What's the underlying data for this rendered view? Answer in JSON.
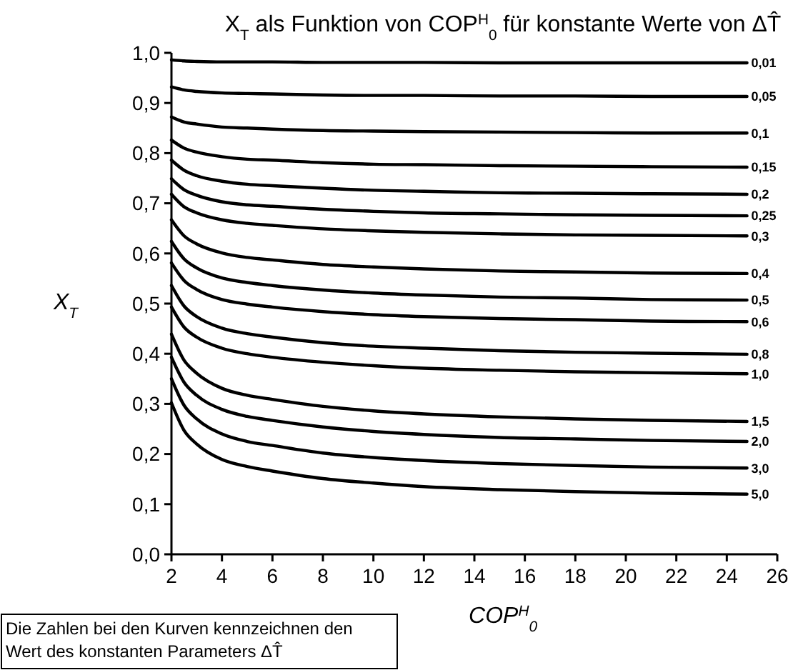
{
  "chart_data": {
    "type": "line",
    "title": "X$_{T}$ als Funktion von COP$^{H}$$_{0}$ für konstante Werte von ΔT̂",
    "xlabel": "COP$^{H}$$_{0}$",
    "ylabel": "X$_{T}$",
    "annotations": [
      "Die Zahlen bei den Kurven kennzeichnen den Wert des konstanten Parameters ΔT̂"
    ],
    "x": [
      2,
      2.5,
      3,
      4,
      5,
      6,
      8,
      10,
      12,
      15,
      18,
      21,
      24.8
    ],
    "xlim": [
      2,
      26
    ],
    "xticks": [
      2,
      4,
      6,
      8,
      10,
      12,
      14,
      16,
      18,
      20,
      22,
      24,
      26
    ],
    "ylim": [
      0,
      1
    ],
    "yticks": [
      {
        "value": 0,
        "label": "0,0"
      },
      {
        "value": 0.1,
        "label": "0,1"
      },
      {
        "value": 0.2,
        "label": "0,2"
      },
      {
        "value": 0.3,
        "label": "0,3"
      },
      {
        "value": 0.4,
        "label": "0,4"
      },
      {
        "value": 0.5,
        "label": "0,5"
      },
      {
        "value": 0.6,
        "label": "0,6"
      },
      {
        "value": 0.7,
        "label": "0,7"
      },
      {
        "value": 0.8,
        "label": "0,8"
      },
      {
        "value": 0.9,
        "label": "0,9"
      },
      {
        "value": 1,
        "label": "1,0"
      }
    ],
    "grid": false,
    "marker": "none",
    "line_style": "solid",
    "series": [
      {
        "name": "0,01",
        "color": "#000000",
        "values": [
          0.986,
          0.984,
          0.983,
          0.982,
          0.982,
          0.982,
          0.981,
          0.981,
          0.981,
          0.98,
          0.98,
          0.98,
          0.98
        ]
      },
      {
        "name": "0,05",
        "color": "#000000",
        "values": [
          0.932,
          0.926,
          0.923,
          0.92,
          0.919,
          0.918,
          0.916,
          0.915,
          0.915,
          0.914,
          0.914,
          0.913,
          0.913
        ]
      },
      {
        "name": "0,1",
        "color": "#000000",
        "values": [
          0.872,
          0.862,
          0.858,
          0.852,
          0.85,
          0.848,
          0.845,
          0.844,
          0.843,
          0.842,
          0.841,
          0.84,
          0.84
        ]
      },
      {
        "name": "0,15",
        "color": "#000000",
        "values": [
          0.826,
          0.81,
          0.802,
          0.793,
          0.788,
          0.786,
          0.781,
          0.778,
          0.777,
          0.775,
          0.774,
          0.773,
          0.772
        ]
      },
      {
        "name": "0,2",
        "color": "#000000",
        "values": [
          0.786,
          0.766,
          0.755,
          0.744,
          0.738,
          0.735,
          0.73,
          0.726,
          0.724,
          0.721,
          0.72,
          0.719,
          0.718
        ]
      },
      {
        "name": "0,25",
        "color": "#000000",
        "values": [
          0.749,
          0.727,
          0.716,
          0.703,
          0.697,
          0.694,
          0.688,
          0.684,
          0.681,
          0.679,
          0.677,
          0.676,
          0.675
        ]
      },
      {
        "name": "0,3",
        "color": "#000000",
        "values": [
          0.718,
          0.693,
          0.681,
          0.667,
          0.66,
          0.656,
          0.649,
          0.645,
          0.642,
          0.639,
          0.637,
          0.636,
          0.635
        ]
      },
      {
        "name": "0,4",
        "color": "#000000",
        "values": [
          0.667,
          0.635,
          0.619,
          0.601,
          0.592,
          0.587,
          0.578,
          0.573,
          0.569,
          0.565,
          0.563,
          0.561,
          0.56
        ]
      },
      {
        "name": "0,5",
        "color": "#000000",
        "values": [
          0.624,
          0.589,
          0.571,
          0.551,
          0.542,
          0.536,
          0.527,
          0.521,
          0.517,
          0.513,
          0.511,
          0.508,
          0.507
        ]
      },
      {
        "name": "0,6",
        "color": "#000000",
        "values": [
          0.581,
          0.546,
          0.528,
          0.508,
          0.499,
          0.493,
          0.484,
          0.478,
          0.474,
          0.47,
          0.468,
          0.465,
          0.464
        ]
      },
      {
        "name": "0,8",
        "color": "#000000",
        "values": [
          0.536,
          0.495,
          0.474,
          0.451,
          0.44,
          0.433,
          0.422,
          0.415,
          0.411,
          0.406,
          0.403,
          0.401,
          0.399
        ]
      },
      {
        "name": "1,0",
        "color": "#000000",
        "values": [
          0.493,
          0.453,
          0.433,
          0.411,
          0.4,
          0.393,
          0.383,
          0.376,
          0.371,
          0.367,
          0.364,
          0.362,
          0.36
        ]
      },
      {
        "name": "1,5",
        "color": "#000000",
        "values": [
          0.439,
          0.387,
          0.361,
          0.331,
          0.317,
          0.309,
          0.295,
          0.286,
          0.28,
          0.274,
          0.27,
          0.267,
          0.265
        ]
      },
      {
        "name": "2,0",
        "color": "#000000",
        "values": [
          0.393,
          0.343,
          0.317,
          0.289,
          0.275,
          0.267,
          0.254,
          0.245,
          0.239,
          0.233,
          0.23,
          0.227,
          0.225
        ]
      },
      {
        "name": "3,0",
        "color": "#000000",
        "values": [
          0.35,
          0.297,
          0.27,
          0.24,
          0.225,
          0.217,
          0.202,
          0.193,
          0.187,
          0.181,
          0.177,
          0.174,
          0.172
        ]
      },
      {
        "name": "5,0",
        "color": "#000000",
        "values": [
          0.302,
          0.247,
          0.22,
          0.189,
          0.175,
          0.166,
          0.151,
          0.142,
          0.135,
          0.129,
          0.125,
          0.122,
          0.12
        ]
      }
    ]
  }
}
